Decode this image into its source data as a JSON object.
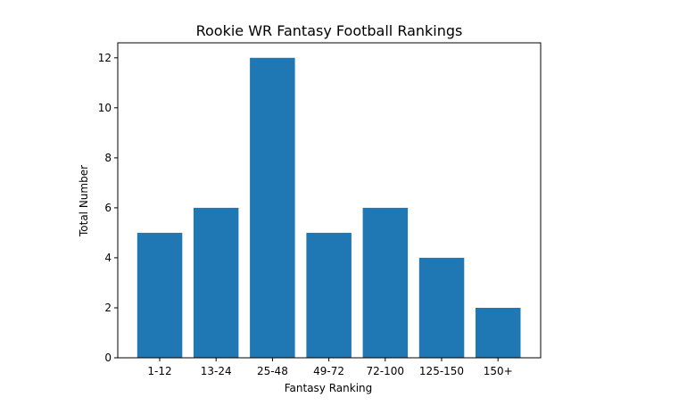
{
  "chart_data": {
    "type": "bar",
    "title": "Rookie WR Fantasy Football Rankings",
    "xlabel": "Fantasy Ranking",
    "ylabel": "Total Number",
    "categories": [
      "1-12",
      "13-24",
      "25-48",
      "49-72",
      "72-100",
      "125-150",
      "150+"
    ],
    "values": [
      5,
      6,
      12,
      5,
      6,
      4,
      2
    ],
    "ylim": [
      0,
      12.6
    ],
    "yticks": [
      0,
      2,
      4,
      6,
      8,
      10,
      12
    ],
    "grid": false,
    "legend": "none",
    "bar_color": "#1f77b4"
  }
}
